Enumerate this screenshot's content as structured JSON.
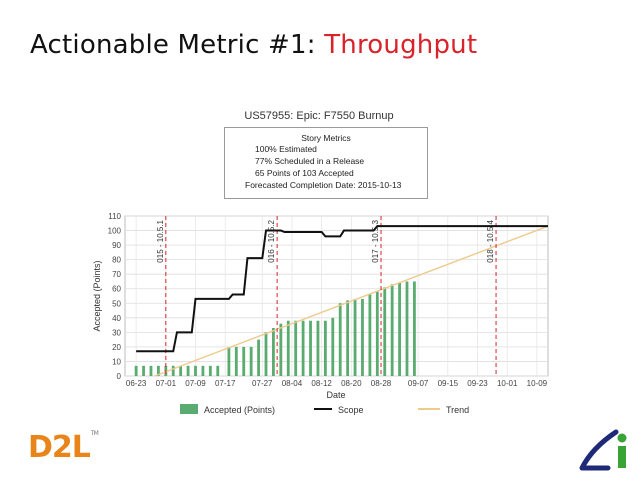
{
  "slide": {
    "title_prefix": "Actionable Metric #1: ",
    "title_highlight": "Throughput"
  },
  "chart_title": "US57955: Epic: F7550 Burnup",
  "metrics": {
    "header": "Story Metrics",
    "line1": "100% Estimated",
    "line2": "77% Scheduled in a Release",
    "line3": "65 Points of 103 Accepted",
    "line4": "Forecasted Completion Date: 2015-10-13"
  },
  "colors": {
    "bar": "#5aab6f",
    "scope": "#111111",
    "trend": "#f0c98c",
    "release": "#d9232a",
    "title_highlight": "#d9232a",
    "d2l": "#e8841a",
    "li_green": "#3aa335",
    "li_navy": "#1e2a78"
  },
  "chart_data": {
    "type": "bar",
    "title": "US57955: Epic: F7550 Burnup",
    "xlabel": "Date",
    "ylabel": "Accepted (Points)",
    "ylim": [
      0,
      110
    ],
    "yticks": [
      0,
      10,
      20,
      30,
      40,
      50,
      60,
      70,
      80,
      90,
      100,
      110
    ],
    "xlim": [
      "2015-06-20",
      "2015-10-12"
    ],
    "xticks": [
      {
        "date": "2015-06-23",
        "label": "06-23"
      },
      {
        "date": "2015-07-01",
        "label": "07-01"
      },
      {
        "date": "2015-07-09",
        "label": "07-09"
      },
      {
        "date": "2015-07-17",
        "label": "07-17"
      },
      {
        "date": "2015-07-27",
        "label": "07-27"
      },
      {
        "date": "2015-08-04",
        "label": "08-04"
      },
      {
        "date": "2015-08-12",
        "label": "08-12"
      },
      {
        "date": "2015-08-20",
        "label": "08-20"
      },
      {
        "date": "2015-08-28",
        "label": "08-28"
      },
      {
        "date": "2015-09-07",
        "label": "09-07"
      },
      {
        "date": "2015-09-15",
        "label": "09-15"
      },
      {
        "date": "2015-09-23",
        "label": "09-23"
      },
      {
        "date": "2015-10-01",
        "label": "10-01"
      },
      {
        "date": "2015-10-09",
        "label": "10-09"
      }
    ],
    "grid": true,
    "legend_position": "bottom",
    "legend": [
      "Accepted (Points)",
      "Scope",
      "Trend"
    ],
    "accepted": [
      {
        "date": "2015-06-23",
        "value": 7
      },
      {
        "date": "2015-06-25",
        "value": 7
      },
      {
        "date": "2015-06-27",
        "value": 7
      },
      {
        "date": "2015-06-29",
        "value": 7
      },
      {
        "date": "2015-07-01",
        "value": 7
      },
      {
        "date": "2015-07-03",
        "value": 7
      },
      {
        "date": "2015-07-05",
        "value": 7
      },
      {
        "date": "2015-07-07",
        "value": 7
      },
      {
        "date": "2015-07-09",
        "value": 7
      },
      {
        "date": "2015-07-11",
        "value": 7
      },
      {
        "date": "2015-07-13",
        "value": 7
      },
      {
        "date": "2015-07-15",
        "value": 7
      },
      {
        "date": "2015-07-18",
        "value": 20
      },
      {
        "date": "2015-07-20",
        "value": 20
      },
      {
        "date": "2015-07-22",
        "value": 20
      },
      {
        "date": "2015-07-24",
        "value": 20
      },
      {
        "date": "2015-07-26",
        "value": 25
      },
      {
        "date": "2015-07-28",
        "value": 30
      },
      {
        "date": "2015-07-30",
        "value": 33
      },
      {
        "date": "2015-08-01",
        "value": 36
      },
      {
        "date": "2015-08-03",
        "value": 38
      },
      {
        "date": "2015-08-05",
        "value": 38
      },
      {
        "date": "2015-08-07",
        "value": 38
      },
      {
        "date": "2015-08-09",
        "value": 38
      },
      {
        "date": "2015-08-11",
        "value": 38
      },
      {
        "date": "2015-08-13",
        "value": 38
      },
      {
        "date": "2015-08-15",
        "value": 40
      },
      {
        "date": "2015-08-17",
        "value": 50
      },
      {
        "date": "2015-08-19",
        "value": 52
      },
      {
        "date": "2015-08-21",
        "value": 53
      },
      {
        "date": "2015-08-23",
        "value": 53
      },
      {
        "date": "2015-08-25",
        "value": 56
      },
      {
        "date": "2015-08-27",
        "value": 58
      },
      {
        "date": "2015-08-29",
        "value": 61
      },
      {
        "date": "2015-08-31",
        "value": 63
      },
      {
        "date": "2015-09-02",
        "value": 64
      },
      {
        "date": "2015-09-04",
        "value": 65
      },
      {
        "date": "2015-09-06",
        "value": 65
      }
    ],
    "scope": [
      {
        "date": "2015-06-23",
        "value": 17
      },
      {
        "date": "2015-07-03",
        "value": 17
      },
      {
        "date": "2015-07-04",
        "value": 30
      },
      {
        "date": "2015-07-08",
        "value": 30
      },
      {
        "date": "2015-07-09",
        "value": 53
      },
      {
        "date": "2015-07-18",
        "value": 53
      },
      {
        "date": "2015-07-19",
        "value": 56
      },
      {
        "date": "2015-07-22",
        "value": 56
      },
      {
        "date": "2015-07-23",
        "value": 81
      },
      {
        "date": "2015-07-27",
        "value": 81
      },
      {
        "date": "2015-07-28",
        "value": 100
      },
      {
        "date": "2015-08-01",
        "value": 100
      },
      {
        "date": "2015-08-02",
        "value": 99
      },
      {
        "date": "2015-08-12",
        "value": 99
      },
      {
        "date": "2015-08-13",
        "value": 96
      },
      {
        "date": "2015-08-17",
        "value": 96
      },
      {
        "date": "2015-08-18",
        "value": 100
      },
      {
        "date": "2015-08-26",
        "value": 100
      },
      {
        "date": "2015-08-27",
        "value": 103
      },
      {
        "date": "2015-10-12",
        "value": 103
      }
    ],
    "trend": [
      {
        "date": "2015-06-28",
        "value": 0
      },
      {
        "date": "2015-10-12",
        "value": 103
      }
    ],
    "release_markers": [
      {
        "date": "2015-07-01",
        "label": "015 - 10.5.1"
      },
      {
        "date": "2015-07-31",
        "label": "016 - 10.5.2"
      },
      {
        "date": "2015-08-28",
        "label": "017 - 10.5.3"
      },
      {
        "date": "2015-09-28",
        "label": "018 - 10.5.4"
      }
    ]
  }
}
